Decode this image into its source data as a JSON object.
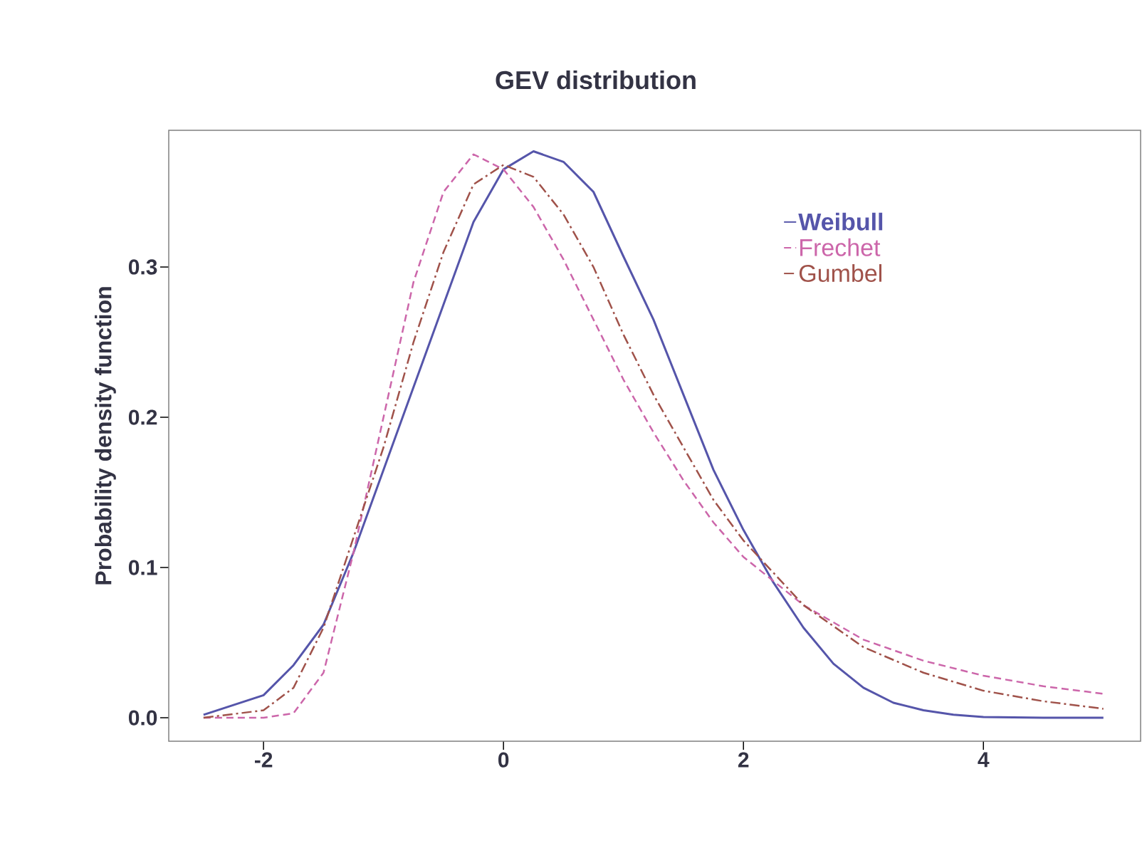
{
  "chart_data": {
    "type": "line",
    "title": "GEV distribution",
    "ylabel": "Probability density function",
    "xlim": [
      -2.79,
      5.31
    ],
    "ylim": [
      -0.0156,
      0.391
    ],
    "xticks": [
      -2,
      0,
      2,
      4
    ],
    "yticks": [
      {
        "value": 0,
        "label": "0.0"
      },
      {
        "value": 0.1,
        "label": "0.1"
      },
      {
        "value": 0.2,
        "label": "0.2"
      },
      {
        "value": 0.3,
        "label": "0.3"
      }
    ],
    "legend": "top right",
    "marker": "none",
    "series": [
      {
        "name": "Weibull",
        "color": "#5555aa",
        "line_style": "solid",
        "x": [
          -2.5,
          -2.0,
          -1.75,
          -1.5,
          -1.25,
          -1.0,
          -0.75,
          -0.5,
          -0.25,
          0,
          0.25,
          0.5,
          0.75,
          1.0,
          1.25,
          1.5,
          1.75,
          2.0,
          2.25,
          2.5,
          2.75,
          3.0,
          3.25,
          3.5,
          3.75,
          4.0,
          4.5,
          5.0
        ],
        "values": [
          0.002,
          0.015,
          0.035,
          0.062,
          0.11,
          0.165,
          0.22,
          0.275,
          0.33,
          0.365,
          0.377,
          0.37,
          0.35,
          0.307,
          0.265,
          0.215,
          0.165,
          0.125,
          0.09,
          0.06,
          0.036,
          0.02,
          0.01,
          0.005,
          0.002,
          0.0005,
          0,
          0
        ]
      },
      {
        "name": "Frechet",
        "color": "#cc66aa",
        "line_style": "dashed",
        "x": [
          -2.5,
          -2.0,
          -1.75,
          -1.5,
          -1.25,
          -1.0,
          -0.75,
          -0.5,
          -0.25,
          0,
          0.25,
          0.5,
          0.75,
          1.0,
          1.25,
          1.5,
          1.75,
          2.0,
          2.5,
          3.0,
          3.5,
          4.0,
          4.5,
          5.0
        ],
        "values": [
          0,
          0,
          0.003,
          0.03,
          0.11,
          0.2,
          0.29,
          0.35,
          0.375,
          0.365,
          0.34,
          0.305,
          0.265,
          0.225,
          0.19,
          0.158,
          0.13,
          0.107,
          0.075,
          0.052,
          0.038,
          0.028,
          0.021,
          0.016
        ]
      },
      {
        "name": "Gumbel",
        "color": "#a0524a",
        "line_style": "dashdot",
        "x": [
          -2.5,
          -2.0,
          -1.75,
          -1.5,
          -1.25,
          -1.0,
          -0.75,
          -0.5,
          -0.25,
          0,
          0.25,
          0.5,
          0.75,
          1.0,
          1.25,
          1.5,
          1.75,
          2.0,
          2.5,
          3.0,
          3.5,
          4.0,
          4.5,
          5.0
        ],
        "values": [
          0,
          0.005,
          0.02,
          0.06,
          0.12,
          0.18,
          0.25,
          0.31,
          0.355,
          0.368,
          0.36,
          0.335,
          0.3,
          0.255,
          0.215,
          0.18,
          0.145,
          0.118,
          0.075,
          0.047,
          0.03,
          0.018,
          0.011,
          0.006
        ]
      }
    ]
  }
}
